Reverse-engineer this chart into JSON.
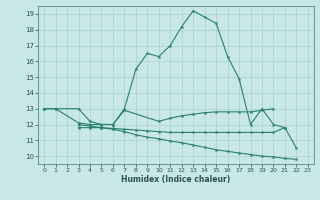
{
  "line1_x": [
    0,
    1,
    3,
    4,
    5,
    6,
    7,
    8,
    9,
    10,
    11,
    12,
    13,
    14,
    15,
    16,
    17,
    18,
    19,
    20,
    21,
    22
  ],
  "line1_y": [
    13.0,
    13.0,
    13.0,
    12.2,
    12.0,
    12.0,
    13.0,
    15.5,
    16.5,
    16.3,
    17.0,
    18.2,
    19.2,
    18.8,
    18.4,
    16.3,
    14.9,
    12.0,
    13.0,
    12.0,
    11.8,
    10.5
  ],
  "line2_x": [
    0,
    1,
    3,
    4,
    5,
    6,
    7,
    10,
    11,
    12,
    13,
    14,
    15,
    16,
    17,
    18,
    19,
    20
  ],
  "line2_y": [
    13.0,
    13.0,
    12.1,
    12.0,
    12.0,
    12.0,
    12.9,
    12.2,
    12.4,
    12.55,
    12.65,
    12.75,
    12.8,
    12.8,
    12.8,
    12.8,
    12.9,
    13.0
  ],
  "line3_x": [
    3,
    4,
    5,
    6,
    7,
    8,
    9,
    10,
    11,
    12,
    13,
    14,
    15,
    16,
    17,
    18,
    19,
    20,
    21
  ],
  "line3_y": [
    11.8,
    11.8,
    11.8,
    11.75,
    11.7,
    11.65,
    11.6,
    11.55,
    11.5,
    11.5,
    11.5,
    11.5,
    11.5,
    11.5,
    11.5,
    11.5,
    11.5,
    11.5,
    11.8
  ],
  "line4_x": [
    3,
    4,
    5,
    6,
    7,
    8,
    9,
    10,
    11,
    12,
    13,
    14,
    15,
    16,
    17,
    18,
    19,
    20,
    21,
    22
  ],
  "line4_y": [
    12.0,
    11.9,
    11.8,
    11.7,
    11.55,
    11.35,
    11.2,
    11.1,
    10.95,
    10.85,
    10.7,
    10.55,
    10.4,
    10.3,
    10.2,
    10.1,
    10.0,
    9.95,
    9.85,
    9.8
  ],
  "line_color": "#2a7f70",
  "bg_color": "#c8e8e8",
  "grid_color": "#aad0d0",
  "xlabel": "Humidex (Indice chaleur)",
  "xlim": [
    -0.5,
    23.5
  ],
  "ylim": [
    9.5,
    19.5
  ],
  "xticks": [
    0,
    1,
    2,
    3,
    4,
    5,
    6,
    7,
    8,
    9,
    10,
    11,
    12,
    13,
    14,
    15,
    16,
    17,
    18,
    19,
    20,
    21,
    22,
    23
  ],
  "yticks": [
    10,
    11,
    12,
    13,
    14,
    15,
    16,
    17,
    18,
    19
  ]
}
